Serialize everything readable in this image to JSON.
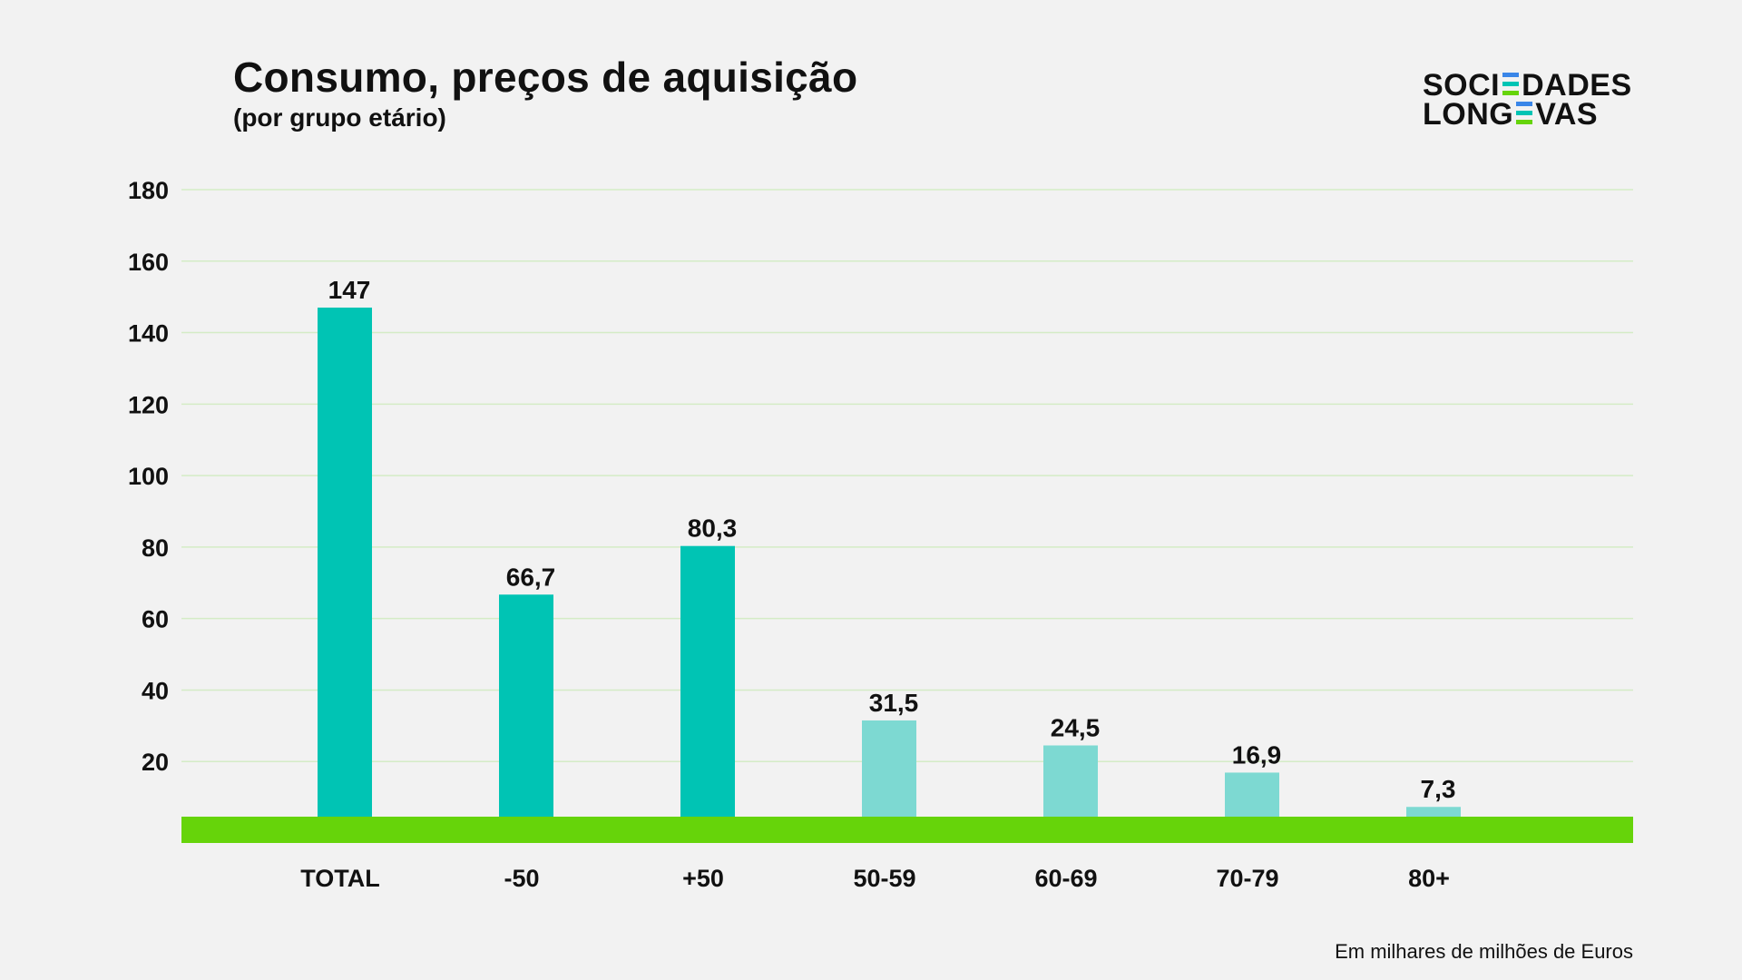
{
  "header": {
    "title": "Consumo, preços de aquisição",
    "subtitle": "(por grupo etário)"
  },
  "logo": {
    "line1_left": "SOCI",
    "line1_right": "DADES",
    "line2_left": "LONG",
    "line2_right": "VAS",
    "accent_colors": [
      "#3a86e8",
      "#00c4b4",
      "#66d40a"
    ]
  },
  "footnote": "Em milhares de milhões de Euros",
  "colors": {
    "bar_primary": "#00c4b4",
    "bar_secondary": "#7dd9d2",
    "baseline": "#66d40a",
    "gridline": "#d4ecc6"
  },
  "chart_data": {
    "type": "bar",
    "title": "Consumo, preços de aquisição",
    "subtitle": "(por grupo etário)",
    "xlabel": "",
    "ylabel": "",
    "categories": [
      "TOTAL",
      "-50",
      "+50",
      "50-59",
      "60-69",
      "70-79",
      "80+"
    ],
    "values": [
      147,
      66.7,
      80.3,
      31.5,
      24.5,
      16.9,
      7.3
    ],
    "value_labels": [
      "147",
      "66,7",
      "80,3",
      "31,5",
      "24,5",
      "16,9",
      "7,3"
    ],
    "highlight": [
      true,
      true,
      true,
      false,
      false,
      false,
      false
    ],
    "ylim": [
      0,
      180
    ],
    "yticks": [
      20,
      40,
      60,
      80,
      100,
      120,
      140,
      160,
      180
    ],
    "grid": true,
    "legend": "none"
  }
}
